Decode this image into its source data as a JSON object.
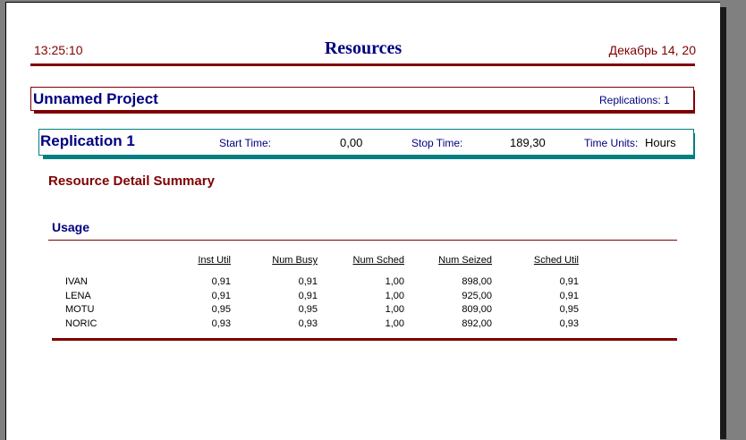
{
  "header": {
    "time": "13:25:10",
    "title": "Resources",
    "date": "Декабрь 14, 20"
  },
  "project": {
    "name": "Unnamed Project",
    "replications_label": "Replications:",
    "replications": "1"
  },
  "replication": {
    "name": "Replication 1",
    "start_label": "Start Time:",
    "start": "0,00",
    "stop_label": "Stop Time:",
    "stop": "189,30",
    "units_label": "Time Units:",
    "units": "Hours"
  },
  "section_title": "Resource Detail Summary",
  "usage": {
    "title": "Usage",
    "columns": [
      "Inst Util",
      "Num Busy",
      "Num Sched",
      "Num Seized",
      "Sched Util"
    ],
    "rows": [
      {
        "name": "IVAN",
        "values": [
          "0,91",
          "0,91",
          "1,00",
          "898,00",
          "0,91"
        ]
      },
      {
        "name": "LENA",
        "values": [
          "0,91",
          "0,91",
          "1,00",
          "925,00",
          "0,91"
        ]
      },
      {
        "name": "MOTU",
        "values": [
          "0,95",
          "0,95",
          "1,00",
          "809,00",
          "0,95"
        ]
      },
      {
        "name": "NORIC",
        "values": [
          "0,93",
          "0,93",
          "1,00",
          "892,00",
          "0,93"
        ]
      }
    ]
  },
  "colors": {
    "maroon": "#800000",
    "navy": "#000080",
    "teal": "#008080"
  }
}
